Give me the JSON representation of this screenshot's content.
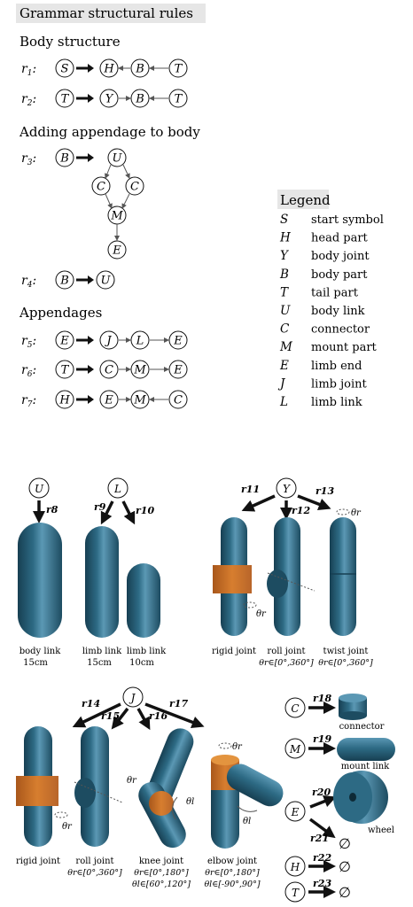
{
  "title": "Grammar structural rules",
  "sections": {
    "body_structure": "Body structure",
    "adding_appendage": "Adding appendage to body",
    "appendages": "Appendages"
  },
  "rules": [
    {
      "id": "r1",
      "label": "r1:",
      "lhs": "S",
      "rhs": [
        "H",
        "B",
        "T"
      ]
    },
    {
      "id": "r2",
      "label": "r2:",
      "lhs": "T",
      "rhs": [
        "Y",
        "B",
        "T"
      ]
    },
    {
      "id": "r3",
      "label": "r3:",
      "lhs": "B",
      "rhs": [
        "U",
        "C",
        "C",
        "M",
        "E"
      ]
    },
    {
      "id": "r4",
      "label": "r4:",
      "lhs": "B",
      "rhs": [
        "U"
      ]
    },
    {
      "id": "r5",
      "label": "r5:",
      "lhs": "E",
      "rhs": [
        "J",
        "L",
        "E"
      ]
    },
    {
      "id": "r6",
      "label": "r6:",
      "lhs": "T",
      "rhs": [
        "C",
        "M",
        "E"
      ]
    },
    {
      "id": "r7",
      "label": "r7:",
      "lhs": "H",
      "rhs": [
        "E",
        "M",
        "C"
      ]
    }
  ],
  "legend": {
    "title": "Legend",
    "items": [
      {
        "symbol": "S",
        "meaning": "start symbol"
      },
      {
        "symbol": "H",
        "meaning": "head part"
      },
      {
        "symbol": "Y",
        "meaning": "body joint"
      },
      {
        "symbol": "B",
        "meaning": "body part"
      },
      {
        "symbol": "T",
        "meaning": "tail part"
      },
      {
        "symbol": "U",
        "meaning": "body link"
      },
      {
        "symbol": "C",
        "meaning": "connector"
      },
      {
        "symbol": "M",
        "meaning": "mount part"
      },
      {
        "symbol": "E",
        "meaning": "limb end"
      },
      {
        "symbol": "J",
        "meaning": "limb joint"
      },
      {
        "symbol": "L",
        "meaning": "limb link"
      }
    ]
  },
  "parts": {
    "r8": "r8",
    "r9": "r9",
    "r10": "r10",
    "r11": "r11",
    "r12": "r12",
    "r13": "r13",
    "r14": "r14",
    "r15": "r15",
    "r16": "r16",
    "r17": "r17",
    "r18": "r18",
    "r19": "r19",
    "r20": "r20",
    "r21": "r21",
    "r22": "r22",
    "r23": "r23",
    "body_link": "body link",
    "body_link_len": "15cm",
    "limb_link_a": "limb link",
    "limb_link_a_len": "15cm",
    "limb_link_b": "limb link",
    "limb_link_b_len": "10cm",
    "rigid_joint": "rigid joint",
    "roll_joint": "roll joint",
    "roll_joint_range": "θr∈[0°,360°]",
    "twist_joint": "twist joint",
    "twist_joint_range": "θr∈[0°,360°]",
    "rigid_joint_2": "rigid joint",
    "roll_joint_2": "roll joint",
    "roll_joint_2_range": "θr∈[0°,360°]",
    "knee_joint": "knee joint",
    "knee_range_r": "θr∈[0°,180°]",
    "knee_range_l": "θl∈[60°,120°]",
    "elbow_joint": "elbow joint",
    "elbow_range_r": "θr∈[0°,180°]",
    "elbow_range_l": "θl∈[-90°,90°]",
    "connector": "connector",
    "mount_link": "mount link",
    "wheel": "wheel",
    "theta_r": "θr",
    "theta_l": "θl",
    "empty": "∅"
  },
  "colors": {
    "link": "#2d6a84",
    "link_dark": "#173f52",
    "link_light": "#5b98b4",
    "joint": "#d77e2f",
    "title_bg": "#e6e6e6"
  }
}
